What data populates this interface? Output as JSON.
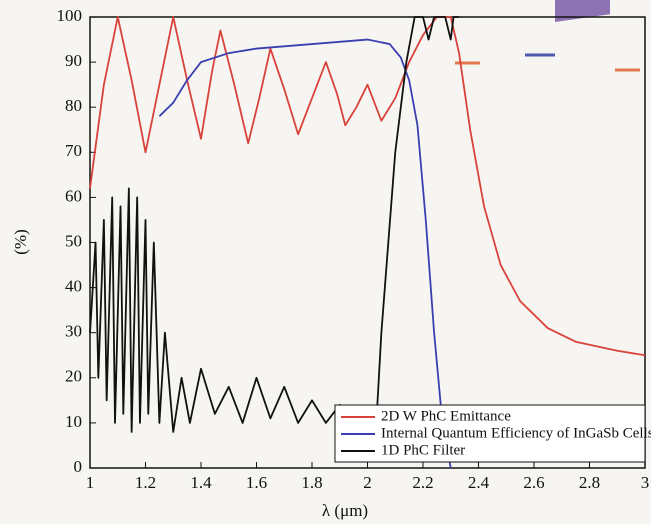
{
  "chart_data": {
    "type": "line",
    "xlabel": "λ (μm)",
    "ylabel": "(%)",
    "xlim": [
      1,
      3
    ],
    "ylim": [
      0,
      100
    ],
    "xticks": [
      1,
      1.2,
      1.4,
      1.6,
      1.8,
      2,
      2.2,
      2.4,
      2.6,
      2.8,
      3
    ],
    "yticks": [
      0,
      10,
      20,
      30,
      40,
      50,
      60,
      70,
      80,
      90,
      100
    ],
    "legend": "lower right",
    "series": [
      {
        "name": "2D W PhC Emittance",
        "color": "#d9423a",
        "x": [
          1.0,
          1.05,
          1.1,
          1.15,
          1.2,
          1.25,
          1.3,
          1.35,
          1.4,
          1.44,
          1.47,
          1.52,
          1.57,
          1.61,
          1.65,
          1.7,
          1.75,
          1.8,
          1.85,
          1.89,
          1.92,
          1.96,
          2.0,
          2.05,
          2.1,
          2.15,
          2.2,
          2.25,
          2.3,
          2.33,
          2.37,
          2.42,
          2.48,
          2.55,
          2.65,
          2.75,
          2.9,
          3.0
        ],
        "values": [
          62,
          85,
          100,
          86,
          70,
          85,
          100,
          86,
          73,
          88,
          97,
          85,
          72,
          82,
          93,
          84,
          74,
          82,
          90,
          83,
          76,
          80,
          85,
          77,
          82,
          90,
          96,
          100,
          100,
          92,
          75,
          58,
          45,
          37,
          31,
          28,
          26,
          25
        ]
      },
      {
        "name": "Internal Quantum Efficiency of InGaSb Cells",
        "color": "#3a3fb0",
        "x": [
          1.25,
          1.3,
          1.35,
          1.4,
          1.5,
          1.6,
          1.7,
          1.8,
          1.9,
          2.0,
          2.08,
          2.12,
          2.15,
          2.18,
          2.21,
          2.24,
          2.27,
          2.3
        ],
        "values": [
          78,
          81,
          86,
          90,
          92,
          93,
          93.5,
          94,
          94.5,
          95,
          94,
          91,
          86,
          76,
          55,
          30,
          10,
          0
        ]
      },
      {
        "name": "1D PhC Filter",
        "color": "#111111",
        "x": [
          1.0,
          1.02,
          1.03,
          1.05,
          1.06,
          1.08,
          1.09,
          1.11,
          1.12,
          1.14,
          1.15,
          1.17,
          1.18,
          1.2,
          1.21,
          1.23,
          1.25,
          1.27,
          1.3,
          1.33,
          1.36,
          1.4,
          1.45,
          1.5,
          1.55,
          1.6,
          1.65,
          1.7,
          1.75,
          1.8,
          1.85,
          1.9,
          1.95,
          2.0,
          2.03,
          2.05,
          2.1,
          2.14,
          2.17,
          2.2,
          2.22,
          2.24,
          2.28,
          2.3,
          2.31,
          2.33
        ],
        "values": [
          30,
          50,
          20,
          55,
          15,
          60,
          10,
          58,
          12,
          62,
          8,
          60,
          10,
          55,
          12,
          50,
          10,
          30,
          8,
          20,
          10,
          22,
          12,
          18,
          10,
          20,
          11,
          18,
          10,
          15,
          10,
          14,
          10,
          12,
          8,
          30,
          70,
          90,
          100,
          100,
          95,
          100,
          100,
          95,
          100,
          100
        ]
      }
    ]
  }
}
